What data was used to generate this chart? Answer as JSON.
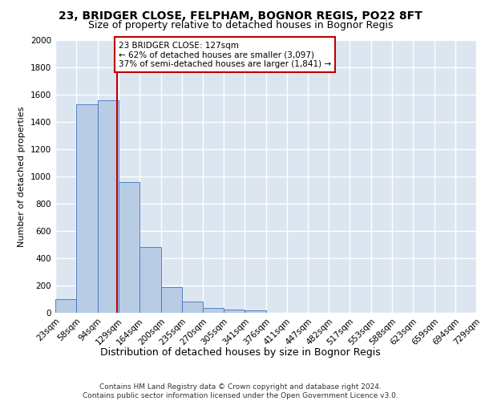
{
  "title1": "23, BRIDGER CLOSE, FELPHAM, BOGNOR REGIS, PO22 8FT",
  "title2": "Size of property relative to detached houses in Bognor Regis",
  "xlabel": "Distribution of detached houses by size in Bognor Regis",
  "ylabel": "Number of detached properties",
  "bin_edges": [
    23,
    58,
    94,
    129,
    164,
    200,
    235,
    270,
    305,
    341,
    376,
    411,
    447,
    482,
    517,
    553,
    588,
    623,
    659,
    694,
    729
  ],
  "bar_heights": [
    100,
    1530,
    1560,
    960,
    480,
    190,
    85,
    35,
    25,
    20,
    0,
    0,
    0,
    0,
    0,
    0,
    0,
    0,
    0,
    0
  ],
  "bar_color": "#b8cce4",
  "bar_edge_color": "#4472c4",
  "property_size": 127,
  "marker_color": "#c00000",
  "annotation_line1": "23 BRIDGER CLOSE: 127sqm",
  "annotation_line2": "← 62% of detached houses are smaller (3,097)",
  "annotation_line3": "37% of semi-detached houses are larger (1,841) →",
  "annotation_box_color": "#c00000",
  "ylim": [
    0,
    2000
  ],
  "yticks": [
    0,
    200,
    400,
    600,
    800,
    1000,
    1200,
    1400,
    1600,
    1800,
    2000
  ],
  "background_color": "#dce6f1",
  "grid_color": "#ffffff",
  "footer_line1": "Contains HM Land Registry data © Crown copyright and database right 2024.",
  "footer_line2": "Contains public sector information licensed under the Open Government Licence v3.0.",
  "title1_fontsize": 10,
  "title2_fontsize": 9,
  "xlabel_fontsize": 9,
  "ylabel_fontsize": 8,
  "tick_fontsize": 7.5,
  "annot_fontsize": 7.5,
  "footer_fontsize": 6.5
}
